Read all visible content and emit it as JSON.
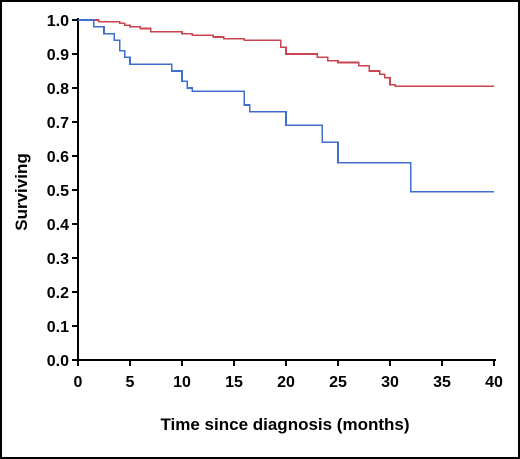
{
  "chart_data": {
    "type": "line",
    "title": "",
    "xlabel": "Time since diagnosis (months)",
    "ylabel": "Surviving",
    "xlim": [
      0,
      40
    ],
    "ylim": [
      0,
      1.0
    ],
    "x_ticks": [
      0,
      5,
      10,
      15,
      20,
      25,
      30,
      35,
      40
    ],
    "y_ticks": [
      0.0,
      0.1,
      0.2,
      0.3,
      0.4,
      0.5,
      0.6,
      0.7,
      0.8,
      0.9,
      1.0
    ],
    "x_tick_labels": [
      "0",
      "5",
      "10",
      "15",
      "20",
      "25",
      "30",
      "35",
      "40"
    ],
    "y_tick_labels": [
      "0.0",
      "0.1",
      "0.2",
      "0.3",
      "0.4",
      "0.5",
      "0.6",
      "0.7",
      "0.8",
      "0.9",
      "1.0"
    ],
    "grid": false,
    "step": true,
    "series": [
      {
        "color": "#c9454f",
        "x": [
          0,
          2,
          4,
          4.5,
          5,
          6,
          7,
          10,
          11,
          13,
          14,
          16,
          18,
          19.5,
          20,
          23,
          24,
          25,
          27,
          28,
          29,
          29.5,
          30,
          30.5,
          40
        ],
        "y": [
          1.0,
          0.995,
          0.99,
          0.985,
          0.98,
          0.975,
          0.965,
          0.96,
          0.955,
          0.95,
          0.945,
          0.94,
          0.94,
          0.92,
          0.9,
          0.89,
          0.88,
          0.875,
          0.865,
          0.85,
          0.84,
          0.83,
          0.81,
          0.805,
          0.805
        ]
      },
      {
        "color": "#3f6fce",
        "x": [
          0,
          1.5,
          2.5,
          3.5,
          4,
          4.5,
          5,
          9,
          10,
          10.5,
          11,
          16,
          16.5,
          20,
          23.5,
          25,
          32,
          40
        ],
        "y": [
          1.0,
          0.98,
          0.96,
          0.94,
          0.91,
          0.89,
          0.87,
          0.85,
          0.82,
          0.8,
          0.79,
          0.75,
          0.73,
          0.69,
          0.64,
          0.58,
          0.495,
          0.495
        ]
      }
    ]
  }
}
